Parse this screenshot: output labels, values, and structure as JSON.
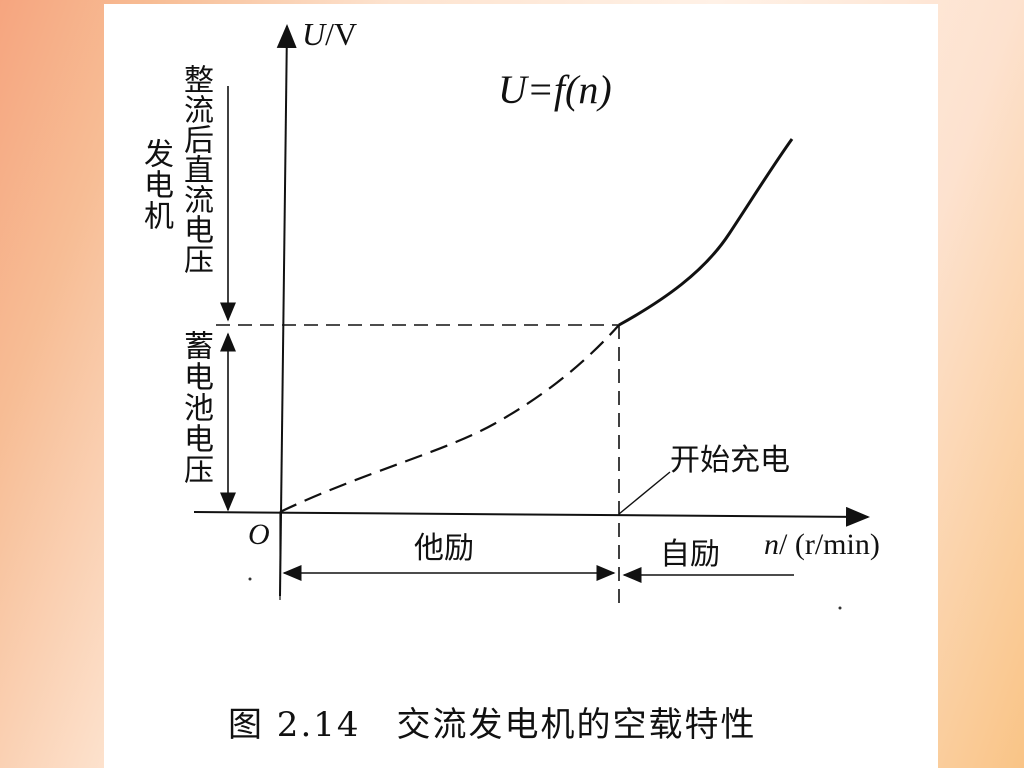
{
  "figure": {
    "formula": "U=f(n)",
    "y_axis_label": {
      "var": "U",
      "unit": "/V"
    },
    "x_axis_label": {
      "var": "n",
      "unit": "/ (r/min)"
    },
    "origin": "O",
    "vertical_labels": {
      "generator_voltage_line1": "发电机",
      "generator_voltage_line2": "整流后直流电压",
      "battery_voltage": "蓄电池电压"
    },
    "annotations": {
      "start_charging": "开始充电",
      "separate_excitation": "他励",
      "self_excitation": "自励"
    },
    "caption": "图 2.14　交流发电机的空载特性",
    "curve": {
      "separately_excited_segment": "dashed",
      "self_excited_segment": "solid"
    }
  }
}
